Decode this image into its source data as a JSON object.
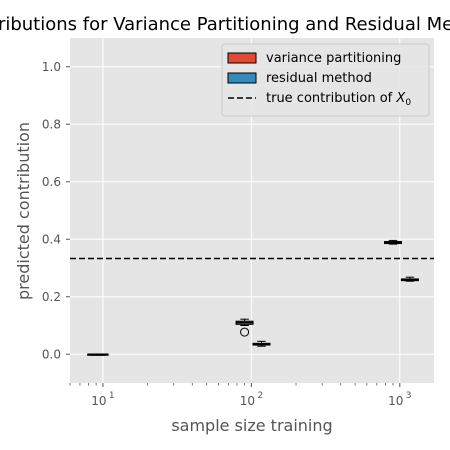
{
  "chart_data": {
    "type": "box",
    "title": "Contributions for Variance Partitioning and Residual Method",
    "xlabel": "sample size training",
    "ylabel": "predicted contribution",
    "x_scale": "log",
    "xlim": [
      6,
      1700
    ],
    "ylim": [
      -0.1,
      1.1
    ],
    "x_ticks": [
      {
        "value": 10,
        "base": "10",
        "exp": "1"
      },
      {
        "value": 100,
        "base": "10",
        "exp": "2"
      },
      {
        "value": 1000,
        "base": "10",
        "exp": "3"
      }
    ],
    "y_ticks": [
      0.0,
      0.2,
      0.4,
      0.6,
      0.8,
      1.0
    ],
    "y_tick_labels": [
      "0.0",
      "0.2",
      "0.4",
      "0.6",
      "0.8",
      "1.0"
    ],
    "grid": true,
    "legend_position": "top-right",
    "true_contribution": {
      "value": 0.333,
      "label_prefix": "true contribution of ",
      "label_var": "X",
      "label_sub": "0"
    },
    "series": [
      {
        "name": "variance partitioning",
        "color": "#e24a33",
        "boxes": [
          {
            "x": 9.0,
            "whislo": 0.0,
            "q1": 0.0,
            "med": 0.0,
            "q3": 0.0,
            "whishi": 0.0,
            "fliers": []
          },
          {
            "x": 90,
            "whislo": 0.1,
            "q1": 0.104,
            "med": 0.11,
            "q3": 0.115,
            "whishi": 0.122,
            "fliers": [
              0.077
            ]
          },
          {
            "x": 900,
            "whislo": 0.383,
            "q1": 0.385,
            "med": 0.389,
            "q3": 0.392,
            "whishi": 0.396,
            "fliers": []
          }
        ]
      },
      {
        "name": "residual method",
        "color": "#348abd",
        "boxes": [
          {
            "x": 9.5,
            "whislo": 0.0,
            "q1": 0.0,
            "med": 0.0,
            "q3": 0.0,
            "whishi": 0.0,
            "fliers": []
          },
          {
            "x": 117,
            "whislo": 0.028,
            "q1": 0.032,
            "med": 0.035,
            "q3": 0.038,
            "whishi": 0.045,
            "fliers": []
          },
          {
            "x": 1170,
            "whislo": 0.254,
            "q1": 0.256,
            "med": 0.259,
            "q3": 0.262,
            "whishi": 0.268,
            "fliers": []
          }
        ]
      }
    ]
  }
}
